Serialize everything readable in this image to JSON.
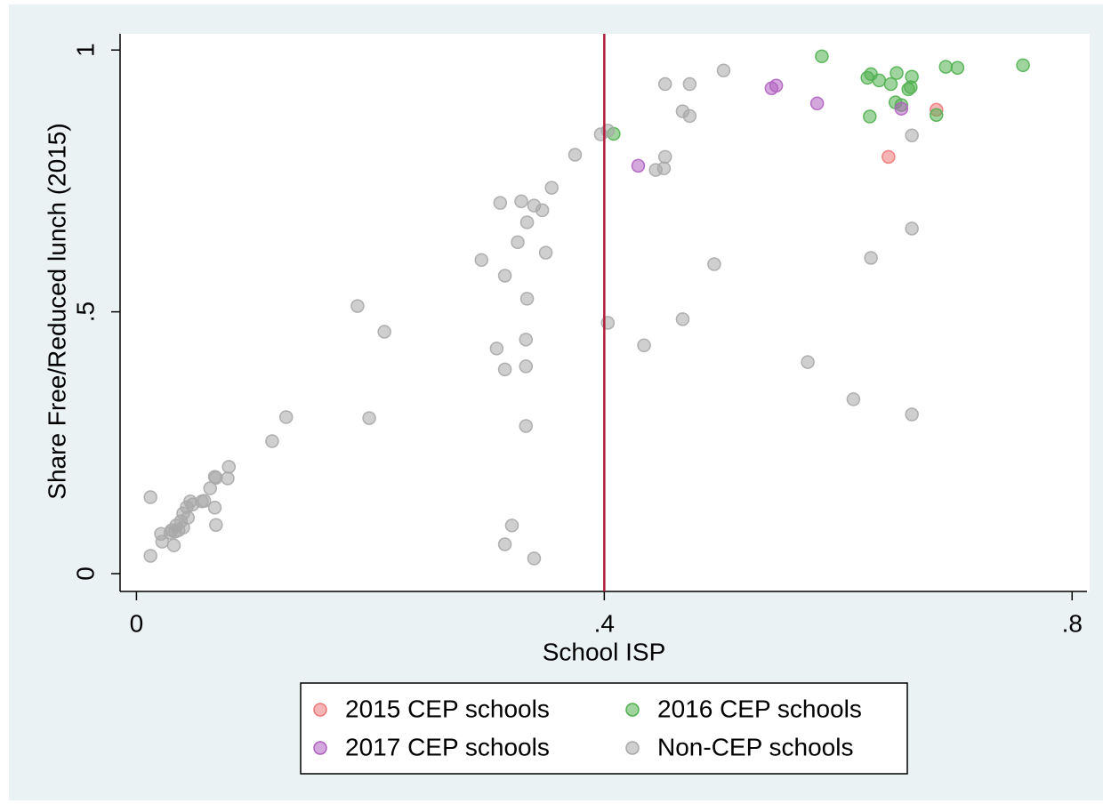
{
  "chart_data": {
    "type": "scatter",
    "x_label": "School ISP",
    "y_label": "Share Free/Reduced lunch (2015)",
    "xlim": [
      -0.014,
      0.815
    ],
    "ylim": [
      -0.034,
      1.031
    ],
    "xticks": [
      0,
      {
        "value": 0.4,
        "label": ".4"
      },
      {
        "value": 0.8,
        "label": ".8"
      }
    ],
    "yticks": [
      0,
      {
        "value": 0.5,
        "label": ".5"
      },
      1
    ],
    "grid": false,
    "legend": "bottom",
    "reference_line": {
      "x": 0.4,
      "color": "#b01c3c"
    },
    "series": [
      {
        "name": "2015 CEP schools",
        "color": "#f07878",
        "x": [
          0.684,
          0.643
        ],
        "y": [
          0.886,
          0.796
        ]
      },
      {
        "name": "2016 CEP schools",
        "color": "#50b050",
        "x": [
          0.586,
          0.625,
          0.628,
          0.635,
          0.645,
          0.65,
          0.663,
          0.662,
          0.66,
          0.692,
          0.702,
          0.758,
          0.649,
          0.654,
          0.627,
          0.684,
          0.408
        ],
        "y": [
          0.988,
          0.947,
          0.954,
          0.942,
          0.935,
          0.956,
          0.949,
          0.929,
          0.925,
          0.968,
          0.966,
          0.971,
          0.9,
          0.895,
          0.873,
          0.876,
          0.84
        ]
      },
      {
        "name": "2017 CEP schools",
        "color": "#b060c0",
        "x": [
          0.543,
          0.547,
          0.582,
          0.654,
          0.429
        ],
        "y": [
          0.927,
          0.932,
          0.898,
          0.888,
          0.779
        ]
      },
      {
        "name": "Non-CEP schools",
        "color": "#a8a8a8",
        "x": [
          0.502,
          0.452,
          0.473,
          0.467,
          0.473,
          0.397,
          0.403,
          0.375,
          0.452,
          0.451,
          0.444,
          0.663,
          0.355,
          0.311,
          0.329,
          0.34,
          0.347,
          0.334,
          0.326,
          0.35,
          0.295,
          0.315,
          0.494,
          0.628,
          0.663,
          0.334,
          0.189,
          0.212,
          0.403,
          0.467,
          0.333,
          0.308,
          0.434,
          0.333,
          0.315,
          0.574,
          0.613,
          0.663,
          0.128,
          0.199,
          0.333,
          0.116,
          0.079,
          0.078,
          0.067,
          0.068,
          0.063,
          0.058,
          0.056,
          0.067,
          0.012,
          0.046,
          0.048,
          0.043,
          0.04,
          0.044,
          0.038,
          0.034,
          0.04,
          0.036,
          0.03,
          0.033,
          0.029,
          0.021,
          0.022,
          0.032,
          0.068,
          0.321,
          0.315,
          0.012,
          0.34
        ],
        "y": [
          0.961,
          0.935,
          0.935,
          0.883,
          0.874,
          0.839,
          0.846,
          0.8,
          0.796,
          0.774,
          0.771,
          0.837,
          0.737,
          0.708,
          0.711,
          0.703,
          0.694,
          0.671,
          0.633,
          0.613,
          0.599,
          0.569,
          0.591,
          0.603,
          0.659,
          0.525,
          0.511,
          0.462,
          0.479,
          0.486,
          0.447,
          0.43,
          0.436,
          0.396,
          0.39,
          0.404,
          0.333,
          0.304,
          0.299,
          0.297,
          0.282,
          0.253,
          0.204,
          0.182,
          0.185,
          0.183,
          0.163,
          0.139,
          0.138,
          0.126,
          0.146,
          0.138,
          0.132,
          0.127,
          0.115,
          0.107,
          0.1,
          0.092,
          0.088,
          0.083,
          0.083,
          0.08,
          0.078,
          0.076,
          0.061,
          0.054,
          0.093,
          0.092,
          0.056,
          0.034,
          0.029
        ]
      }
    ]
  }
}
